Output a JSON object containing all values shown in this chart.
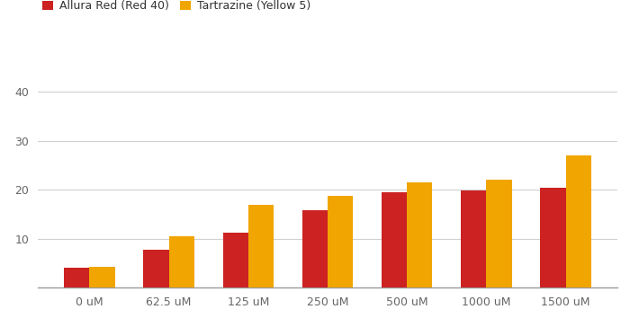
{
  "categories": [
    "0 uM",
    "62.5 uM",
    "125 uM",
    "250 uM",
    "500 uM",
    "1000 uM",
    "1500 uM"
  ],
  "allura_red": [
    4.0,
    7.8,
    11.2,
    15.8,
    19.5,
    19.8,
    20.4
  ],
  "tartrazine": [
    4.3,
    10.5,
    17.0,
    18.7,
    21.5,
    22.0,
    27.0
  ],
  "color_red": "#CC2222",
  "color_yellow": "#F0A500",
  "legend_red": "Allura Red (Red 40)",
  "legend_yellow": "Tartrazine (Yellow 5)",
  "ylim": [
    0,
    44
  ],
  "yticks": [
    10,
    20,
    30,
    40
  ],
  "background_color": "#ffffff",
  "grid_color": "#d0d0d0",
  "bar_width": 0.32,
  "figsize": [
    7.0,
    3.64
  ],
  "dpi": 100
}
